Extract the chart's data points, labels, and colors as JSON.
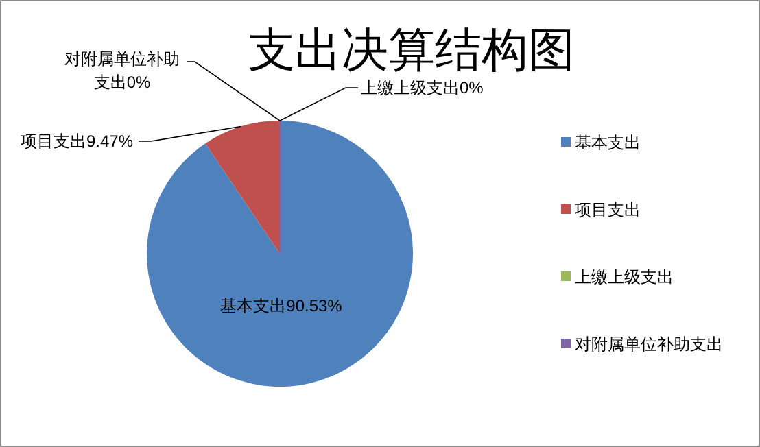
{
  "chart_data": {
    "type": "pie",
    "title": "支出决算结构图",
    "categories": [
      "基本支出",
      "项目支出",
      "上缴上级支出",
      "对附属单位补助支出"
    ],
    "values": [
      90.53,
      9.47,
      0,
      0
    ],
    "colors": [
      "#4f81bd",
      "#c0504d",
      "#9bbb59",
      "#8064a2"
    ],
    "value_labels": [
      "基本支出90.53%",
      "项目支出9.47%",
      "上缴上级支出0%",
      "对附属单位补助支出0%"
    ],
    "legend": "right"
  }
}
